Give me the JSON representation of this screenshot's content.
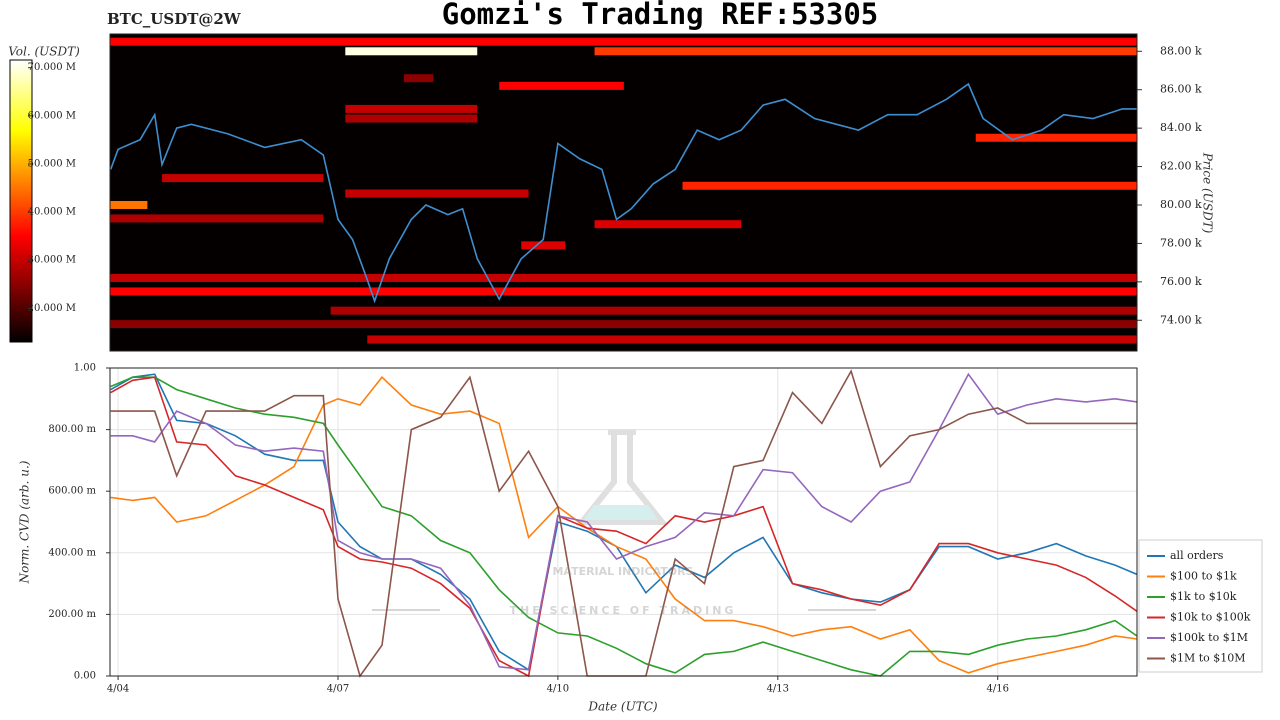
{
  "chart_data": [
    {
      "type": "heatmap",
      "title": "Gomzi's Trading REF:53305",
      "subtitle": "BTC_USDT@2W",
      "ylabel": "Price (USDT)",
      "colorbar_label": "Vol. (USDT)",
      "xlim": [
        3.89,
        17.9
      ],
      "ylim": [
        72400,
        88900
      ],
      "yticks": [
        {
          "value": 74000,
          "label": "74.00 k"
        },
        {
          "value": 76000,
          "label": "76.00 k"
        },
        {
          "value": 78000,
          "label": "78.00 k"
        },
        {
          "value": 80000,
          "label": "80.00 k"
        },
        {
          "value": 82000,
          "label": "82.00 k"
        },
        {
          "value": 84000,
          "label": "84.00 k"
        },
        {
          "value": 86000,
          "label": "86.00 k"
        },
        {
          "value": 88000,
          "label": "88.00 k"
        }
      ],
      "vlim": [
        13000000,
        71600000
      ],
      "vticks": [
        {
          "value": 20000000,
          "label": "20.000 M"
        },
        {
          "value": 30000000,
          "label": "30.000 M"
        },
        {
          "value": 40000000,
          "label": "40.000 M"
        },
        {
          "value": 50000000,
          "label": "50.000 M"
        },
        {
          "value": 60000000,
          "label": "60.000 M"
        },
        {
          "value": 70000000,
          "label": "70.000 M"
        }
      ],
      "bands": {
        "price": [
          88500,
          88000,
          88000,
          86600,
          86200,
          85000,
          84500,
          83500,
          81400,
          81000,
          80600,
          80000,
          79300,
          79000,
          77900,
          76200,
          75500,
          74500,
          73800,
          73000
        ],
        "x0": [
          3.89,
          7.1,
          10.5,
          7.9,
          9.2,
          7.1,
          7.1,
          15.7,
          4.6,
          11.7,
          7.1,
          3.89,
          3.89,
          10.5,
          9.5,
          3.89,
          3.89,
          6.9,
          3.89,
          7.4
        ],
        "x1": [
          17.9,
          8.9,
          17.9,
          8.3,
          10.9,
          8.9,
          8.9,
          17.9,
          6.8,
          17.9,
          9.6,
          4.4,
          6.8,
          12.5,
          10.1,
          17.9,
          17.9,
          17.9,
          17.9,
          17.9
        ],
        "volume": [
          35000000,
          70000000,
          40000000,
          25000000,
          35000000,
          30000000,
          28000000,
          38000000,
          30000000,
          38000000,
          30000000,
          45000000,
          28000000,
          32000000,
          32000000,
          30000000,
          35000000,
          28000000,
          25000000,
          30000000
        ]
      },
      "line": {
        "color": "#3d8fd1",
        "x": [
          3.9,
          4.0,
          4.3,
          4.5,
          4.6,
          4.8,
          5.0,
          5.5,
          6.0,
          6.5,
          6.8,
          7.0,
          7.2,
          7.4,
          7.5,
          7.7,
          8.0,
          8.2,
          8.5,
          8.7,
          8.9,
          9.2,
          9.5,
          9.8,
          10.0,
          10.3,
          10.6,
          10.8,
          11.0,
          11.3,
          11.6,
          11.9,
          12.2,
          12.5,
          12.8,
          13.1,
          13.5,
          13.8,
          14.1,
          14.5,
          14.9,
          15.3,
          15.6,
          15.8,
          16.2,
          16.6,
          16.9,
          17.3,
          17.7,
          17.9
        ],
        "values": [
          81850,
          82900,
          83400,
          84700,
          82100,
          84000,
          84200,
          83700,
          83000,
          83400,
          82600,
          79250,
          78200,
          76100,
          75000,
          77200,
          79250,
          80000,
          79500,
          79800,
          77200,
          75100,
          77200,
          78200,
          83200,
          82400,
          81850,
          79250,
          79800,
          81100,
          81850,
          83900,
          83400,
          83900,
          85200,
          85500,
          84500,
          84200,
          83900,
          84700,
          84700,
          85500,
          86300,
          84500,
          83400,
          83900,
          84700,
          84500,
          85000,
          85000
        ]
      }
    },
    {
      "type": "line",
      "ylabel": "Norm. CVD (arb. u.)",
      "xlabel": "Date (UTC)",
      "xlim": [
        3.89,
        17.9
      ],
      "xticks": [
        {
          "value": 4,
          "label": "4/04"
        },
        {
          "value": 7,
          "label": "4/07"
        },
        {
          "value": 10,
          "label": "4/10"
        },
        {
          "value": 13,
          "label": "4/13"
        },
        {
          "value": 16,
          "label": "4/16"
        }
      ],
      "ylim": [
        0,
        1
      ],
      "yticks": [
        {
          "value": 0,
          "label": "0.00"
        },
        {
          "value": 0.2,
          "label": "200.00 m"
        },
        {
          "value": 0.4,
          "label": "400.00 m"
        },
        {
          "value": 0.6,
          "label": "600.00 m"
        },
        {
          "value": 0.8,
          "label": "800.00 m"
        },
        {
          "value": 1,
          "label": "1.00"
        }
      ],
      "grid": true,
      "legend": "right",
      "watermark": {
        "title": "MATERIAL INDICATORS",
        "subtitle": "THE SCIENCE OF TRADING"
      },
      "x": [
        3.9,
        4.2,
        4.5,
        4.8,
        5.2,
        5.6,
        6.0,
        6.4,
        6.8,
        7.0,
        7.3,
        7.6,
        8.0,
        8.4,
        8.8,
        9.2,
        9.6,
        10.0,
        10.4,
        10.8,
        11.2,
        11.6,
        12.0,
        12.4,
        12.8,
        13.2,
        13.6,
        14.0,
        14.4,
        14.8,
        15.2,
        15.6,
        16.0,
        16.4,
        16.8,
        17.2,
        17.6,
        17.9
      ],
      "series": [
        {
          "name": "all orders",
          "color": "#1f77b4",
          "values": [
            0.93,
            0.97,
            0.98,
            0.83,
            0.82,
            0.78,
            0.72,
            0.7,
            0.7,
            0.5,
            0.42,
            0.38,
            0.38,
            0.33,
            0.25,
            0.08,
            0.02,
            0.5,
            0.47,
            0.42,
            0.27,
            0.36,
            0.32,
            0.4,
            0.45,
            0.3,
            0.27,
            0.25,
            0.24,
            0.28,
            0.42,
            0.42,
            0.38,
            0.4,
            0.43,
            0.39,
            0.36,
            0.33
          ]
        },
        {
          "name": "$100 to $1k",
          "color": "#ff7f0e",
          "values": [
            0.58,
            0.57,
            0.58,
            0.5,
            0.52,
            0.57,
            0.62,
            0.68,
            0.88,
            0.9,
            0.88,
            0.97,
            0.88,
            0.85,
            0.86,
            0.82,
            0.45,
            0.55,
            0.48,
            0.42,
            0.38,
            0.25,
            0.18,
            0.18,
            0.16,
            0.13,
            0.15,
            0.16,
            0.12,
            0.15,
            0.05,
            0.01,
            0.04,
            0.06,
            0.08,
            0.1,
            0.13,
            0.12
          ]
        },
        {
          "name": "$1k to $10k",
          "color": "#2ca02c",
          "values": [
            0.94,
            0.97,
            0.97,
            0.93,
            0.9,
            0.87,
            0.85,
            0.84,
            0.82,
            0.75,
            0.65,
            0.55,
            0.52,
            0.44,
            0.4,
            0.28,
            0.19,
            0.14,
            0.13,
            0.09,
            0.04,
            0.01,
            0.07,
            0.08,
            0.11,
            0.08,
            0.05,
            0.02,
            0.0,
            0.08,
            0.08,
            0.07,
            0.1,
            0.12,
            0.13,
            0.15,
            0.18,
            0.13
          ]
        },
        {
          "name": "$10k to $100k",
          "color": "#d62728",
          "values": [
            0.92,
            0.96,
            0.97,
            0.76,
            0.75,
            0.65,
            0.62,
            0.58,
            0.54,
            0.42,
            0.38,
            0.37,
            0.35,
            0.3,
            0.22,
            0.05,
            0.0,
            0.52,
            0.48,
            0.47,
            0.43,
            0.52,
            0.5,
            0.52,
            0.55,
            0.3,
            0.28,
            0.25,
            0.23,
            0.28,
            0.43,
            0.43,
            0.4,
            0.38,
            0.36,
            0.32,
            0.26,
            0.21
          ]
        },
        {
          "name": "$100k to $1M",
          "color": "#9467bd",
          "values": [
            0.78,
            0.78,
            0.76,
            0.86,
            0.82,
            0.75,
            0.73,
            0.74,
            0.73,
            0.44,
            0.4,
            0.38,
            0.38,
            0.35,
            0.23,
            0.03,
            0.02,
            0.52,
            0.5,
            0.38,
            0.42,
            0.45,
            0.53,
            0.52,
            0.67,
            0.66,
            0.55,
            0.5,
            0.6,
            0.63,
            0.8,
            0.98,
            0.85,
            0.88,
            0.9,
            0.89,
            0.9,
            0.89
          ]
        },
        {
          "name": "$1M to $10M",
          "color": "#8c564b",
          "values": [
            0.86,
            0.86,
            0.86,
            0.65,
            0.86,
            0.86,
            0.86,
            0.91,
            0.91,
            0.25,
            0.0,
            0.1,
            0.8,
            0.84,
            0.97,
            0.6,
            0.73,
            0.55,
            0.0,
            0.0,
            0.0,
            0.38,
            0.3,
            0.68,
            0.7,
            0.92,
            0.82,
            0.99,
            0.68,
            0.78,
            0.8,
            0.85,
            0.87,
            0.82,
            0.82,
            0.82,
            0.82,
            0.82
          ]
        }
      ]
    }
  ]
}
